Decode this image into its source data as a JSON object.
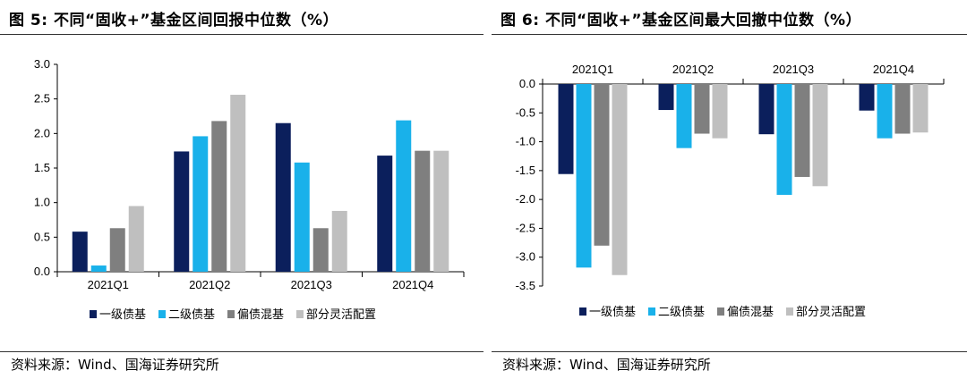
{
  "colors": {
    "series1": "#0b1f5c",
    "series2": "#19b1ea",
    "series3": "#7f7f7f",
    "series4": "#bfbfbf"
  },
  "left": {
    "title": "图 5:  不同“固收+”基金区间回报中位数（%）",
    "source": "资料来源：Wind、国海证券研究所"
  },
  "right": {
    "title": "图 6:  不同“固收+”基金区间最大回撤中位数（%）",
    "source": "资料来源：Wind、国海证券研究所"
  },
  "chart_data": [
    {
      "type": "bar",
      "categories": [
        "2021Q1",
        "2021Q2",
        "2021Q3",
        "2021Q4"
      ],
      "series": [
        {
          "name": "一级债基",
          "values": [
            0.58,
            1.74,
            2.15,
            1.68
          ]
        },
        {
          "name": "二级债基",
          "values": [
            0.09,
            1.96,
            1.58,
            2.19
          ]
        },
        {
          "name": "偏债混基",
          "values": [
            0.63,
            2.18,
            0.63,
            1.75
          ]
        },
        {
          "name": "部分灵活配置",
          "values": [
            0.95,
            2.56,
            0.88,
            1.75
          ]
        }
      ],
      "ylim": [
        0,
        3.0
      ],
      "yticks": [
        "0.0",
        "0.5",
        "1.0",
        "1.5",
        "2.0",
        "2.5",
        "3.0"
      ],
      "legend": "bottom",
      "grid": false
    },
    {
      "type": "bar",
      "categories": [
        "2021Q1",
        "2021Q2",
        "2021Q3",
        "2021Q4"
      ],
      "series": [
        {
          "name": "一级债基",
          "values": [
            -1.56,
            -0.45,
            -0.87,
            -0.46
          ]
        },
        {
          "name": "二级债基",
          "values": [
            -3.18,
            -1.11,
            -1.92,
            -0.94
          ]
        },
        {
          "name": "偏债混基",
          "values": [
            -2.8,
            -0.86,
            -1.61,
            -0.86
          ]
        },
        {
          "name": "部分灵活配置",
          "values": [
            -3.31,
            -0.94,
            -1.77,
            -0.84
          ]
        }
      ],
      "ylim": [
        -3.5,
        0.0
      ],
      "yticks": [
        "0.0",
        "-0.5",
        "-1.0",
        "-1.5",
        "-2.0",
        "-2.5",
        "-3.0",
        "-3.5"
      ],
      "legend": "bottom",
      "grid": false,
      "category_labels_position": "top"
    }
  ]
}
